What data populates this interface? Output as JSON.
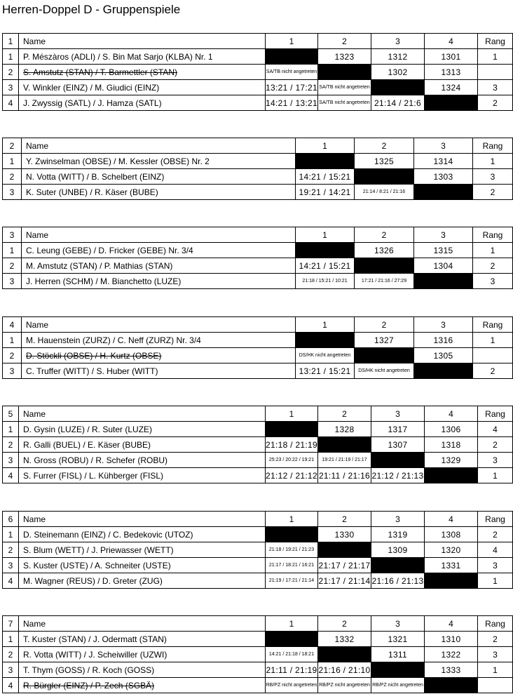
{
  "title": "Herren-Doppel D - Gruppenspiele",
  "name_header": "Name",
  "rang_header": "Rang",
  "groups": [
    {
      "id": "1",
      "cols": [
        "1",
        "2",
        "3",
        "4"
      ],
      "rows": [
        {
          "num": "1",
          "name": "P. Mészàros (ADLI) / S. Bin Mat Sarjo (KLBA) Nr. 1",
          "struck": false,
          "cells": [
            null,
            "1323",
            "1312",
            "1301"
          ],
          "rang": "1"
        },
        {
          "num": "2",
          "name": "S. Amstutz (STAN) / T. Barmettler (STAN)",
          "struck": true,
          "cells": [
            "SA/TB nicht angetreten",
            null,
            "1302",
            "1313"
          ],
          "rang": ""
        },
        {
          "num": "3",
          "name": "V. Winkler (EINZ) / M. Giudici (EINZ)",
          "struck": false,
          "cells": [
            "13:21 / 17:21",
            "SA/TB nicht angetreten",
            null,
            "1324"
          ],
          "rang": "3"
        },
        {
          "num": "4",
          "name": "J. Zwyssig (SATL) / J. Hamza (SATL)",
          "struck": false,
          "cells": [
            "14:21 / 13:21",
            "SA/TB nicht angetreten",
            "21:14 / 21:6",
            null
          ],
          "rang": "2"
        }
      ]
    },
    {
      "id": "2",
      "cols": [
        "1",
        "2",
        "3"
      ],
      "rows": [
        {
          "num": "1",
          "name": "Y. Zwinselman (OBSE) / M. Kessler (OBSE) Nr. 2",
          "struck": false,
          "cells": [
            null,
            "1325",
            "1314"
          ],
          "rang": "1"
        },
        {
          "num": "2",
          "name": "N. Votta (WITT) / B. Schelbert (EINZ)",
          "struck": false,
          "cells": [
            "14:21 / 15:21",
            null,
            "1303"
          ],
          "rang": "3"
        },
        {
          "num": "3",
          "name": "K. Suter (UNBE) / R. Käser (BUBE)",
          "struck": false,
          "cells": [
            "19:21 / 14:21",
            "21:14 / 8:21 / 21:16",
            null
          ],
          "rang": "2"
        }
      ]
    },
    {
      "id": "3",
      "cols": [
        "1",
        "2",
        "3"
      ],
      "rows": [
        {
          "num": "1",
          "name": "C. Leung (GEBE) / D. Fricker (GEBE) Nr. 3/4",
          "struck": false,
          "cells": [
            null,
            "1326",
            "1315"
          ],
          "rang": "1"
        },
        {
          "num": "2",
          "name": "M. Amstutz (STAN) / P. Mathias (STAN)",
          "struck": false,
          "cells": [
            "14:21 / 15:21",
            null,
            "1304"
          ],
          "rang": "2"
        },
        {
          "num": "3",
          "name": "J. Herren (SCHM) / M. Bianchetto (LUZE)",
          "struck": false,
          "cells": [
            "21:18 / 15:21 / 10:21",
            "17:21 / 21:16 / 27:29",
            null
          ],
          "rang": "3"
        }
      ]
    },
    {
      "id": "4",
      "cols": [
        "1",
        "2",
        "3"
      ],
      "rows": [
        {
          "num": "1",
          "name": "M. Hauenstein (ZURZ) / C. Neff (ZURZ) Nr. 3/4",
          "struck": false,
          "cells": [
            null,
            "1327",
            "1316"
          ],
          "rang": "1"
        },
        {
          "num": "2",
          "name": "D. Stöckli (OBSE) / H. Kurtz (OBSE)",
          "struck": true,
          "cells": [
            "DS/HK nicht angetreten",
            null,
            "1305"
          ],
          "rang": ""
        },
        {
          "num": "3",
          "name": "C. Truffer (WITT) / S. Huber (WITT)",
          "struck": false,
          "cells": [
            "13:21 / 15:21",
            "DS/HK nicht angetreten",
            null
          ],
          "rang": "2"
        }
      ]
    },
    {
      "id": "5",
      "cols": [
        "1",
        "2",
        "3",
        "4"
      ],
      "rows": [
        {
          "num": "1",
          "name": "D. Gysin (LUZE) / R. Suter (LUZE)",
          "struck": false,
          "cells": [
            null,
            "1328",
            "1317",
            "1306"
          ],
          "rang": "4"
        },
        {
          "num": "2",
          "name": "R. Galli (BUEL) / E. Käser (BUBE)",
          "struck": false,
          "cells": [
            "21:18 / 21:19",
            null,
            "1307",
            "1318"
          ],
          "rang": "2"
        },
        {
          "num": "3",
          "name": "N. Gross (ROBU) / R. Schefer (ROBU)",
          "struck": false,
          "cells": [
            "25:23 / 20:22 / 19:21",
            "19:21 / 21:19 / 21:17",
            null,
            "1329"
          ],
          "rang": "3"
        },
        {
          "num": "4",
          "name": "S. Furrer (FISL) / L. Kühberger (FISL)",
          "struck": false,
          "cells": [
            "21:12 / 21:12",
            "21:11 / 21:16",
            "21:12 / 21:13",
            null
          ],
          "rang": "1"
        }
      ]
    },
    {
      "id": "6",
      "cols": [
        "1",
        "2",
        "3",
        "4"
      ],
      "rows": [
        {
          "num": "1",
          "name": "D. Steinemann (EINZ) / C. Bedekovic (UTOZ)",
          "struck": false,
          "cells": [
            null,
            "1330",
            "1319",
            "1308"
          ],
          "rang": "2"
        },
        {
          "num": "2",
          "name": "S. Blum (WETT) / J. Priewasser (WETT)",
          "struck": false,
          "cells": [
            "21:18 / 19:21 / 21:23",
            null,
            "1309",
            "1320"
          ],
          "rang": "4"
        },
        {
          "num": "3",
          "name": "S. Kuster (USTE) / A. Schneiter (USTE)",
          "struck": false,
          "cells": [
            "21:17 / 18:21 / 16:21",
            "21:17 / 21:17",
            null,
            "1331"
          ],
          "rang": "3"
        },
        {
          "num": "4",
          "name": "M. Wagner (REUS) / D. Greter (ZUG)",
          "struck": false,
          "cells": [
            "21:19 / 17:21 / 21:14",
            "21:17 / 21:14",
            "21:16 / 21:13",
            null
          ],
          "rang": "1"
        }
      ]
    },
    {
      "id": "7",
      "cols": [
        "1",
        "2",
        "3",
        "4"
      ],
      "rows": [
        {
          "num": "1",
          "name": "T. Kuster (STAN) / J. Odermatt (STAN)",
          "struck": false,
          "cells": [
            null,
            "1332",
            "1321",
            "1310"
          ],
          "rang": "2"
        },
        {
          "num": "2",
          "name": "R. Votta (WITT) / J. Scheiwiller (UZWI)",
          "struck": false,
          "cells": [
            "14:21 / 21:18 / 18:21",
            null,
            "1311",
            "1322"
          ],
          "rang": "3"
        },
        {
          "num": "3",
          "name": "T. Thym (GOSS) / R. Koch (GOSS)",
          "struck": false,
          "cells": [
            "21:11 / 21:19",
            "21:16 / 21:10",
            null,
            "1333"
          ],
          "rang": "1"
        },
        {
          "num": "4",
          "name": "R. Bürgler (EINZ) / P. Zech (SGBÄ)",
          "struck": true,
          "cells": [
            "RB/PZ nicht angetreten",
            "RB/PZ nicht angetreten",
            "RB/PZ nicht angetreten",
            null
          ],
          "rang": ""
        }
      ]
    }
  ]
}
